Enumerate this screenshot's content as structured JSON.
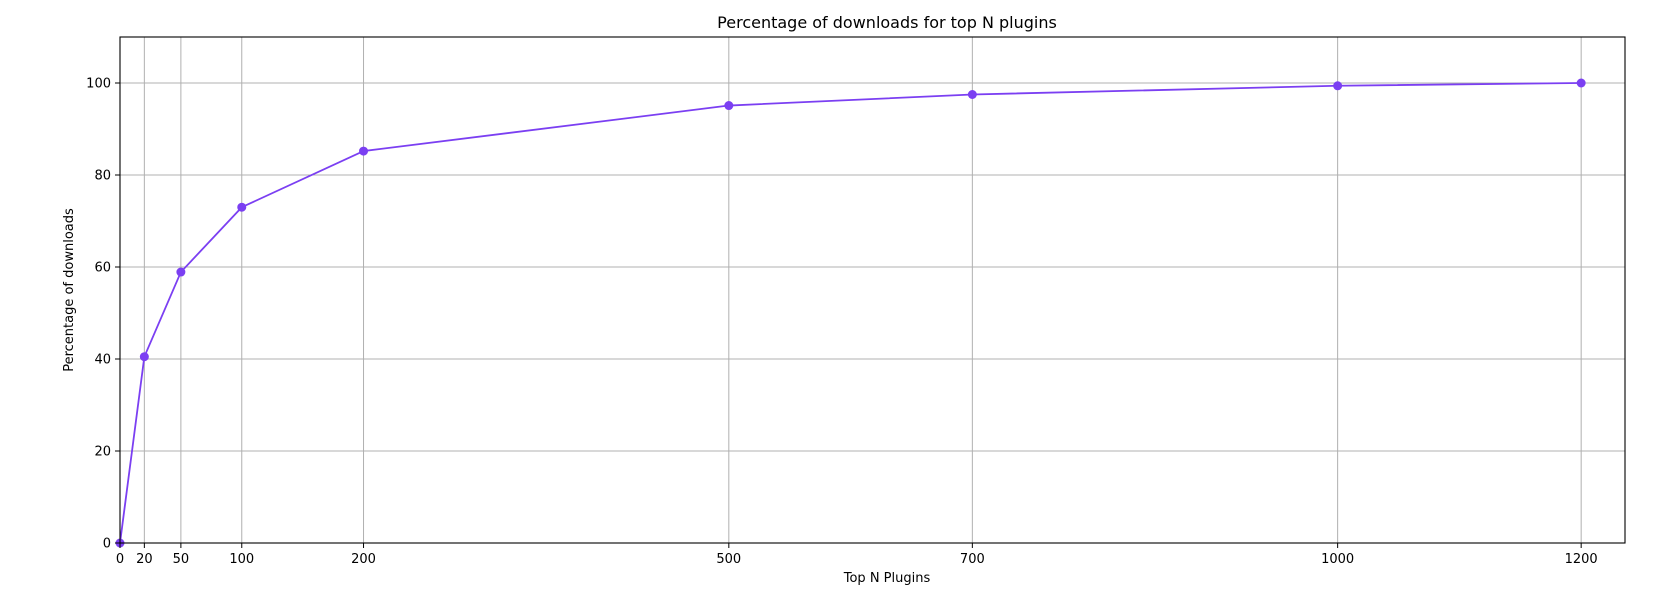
{
  "chart_data": {
    "type": "line",
    "title": "Percentage of downloads for top N plugins",
    "xlabel": "Top N Plugins",
    "ylabel": "Percentage of downloads",
    "x": [
      0,
      20,
      50,
      100,
      200,
      500,
      700,
      1000,
      1200
    ],
    "series": [
      {
        "values": [
          0,
          40.5,
          58.9,
          73.0,
          85.2,
          95.1,
          97.5,
          99.4,
          100.0
        ],
        "color": "#7b3ff2",
        "marker": "circle"
      }
    ],
    "xticks": [
      0,
      20,
      50,
      100,
      200,
      500,
      700,
      1000,
      1200
    ],
    "xtick_labels": [
      "0",
      "20",
      "50",
      "100",
      "200",
      "500",
      "700",
      "1000",
      "1200"
    ],
    "yticks": [
      0,
      20,
      40,
      60,
      80,
      100
    ],
    "ytick_labels": [
      "0",
      "20",
      "40",
      "60",
      "80",
      "100"
    ],
    "xlim": [
      0,
      1236
    ],
    "ylim": [
      0,
      110
    ],
    "grid": true,
    "legend": "none"
  }
}
